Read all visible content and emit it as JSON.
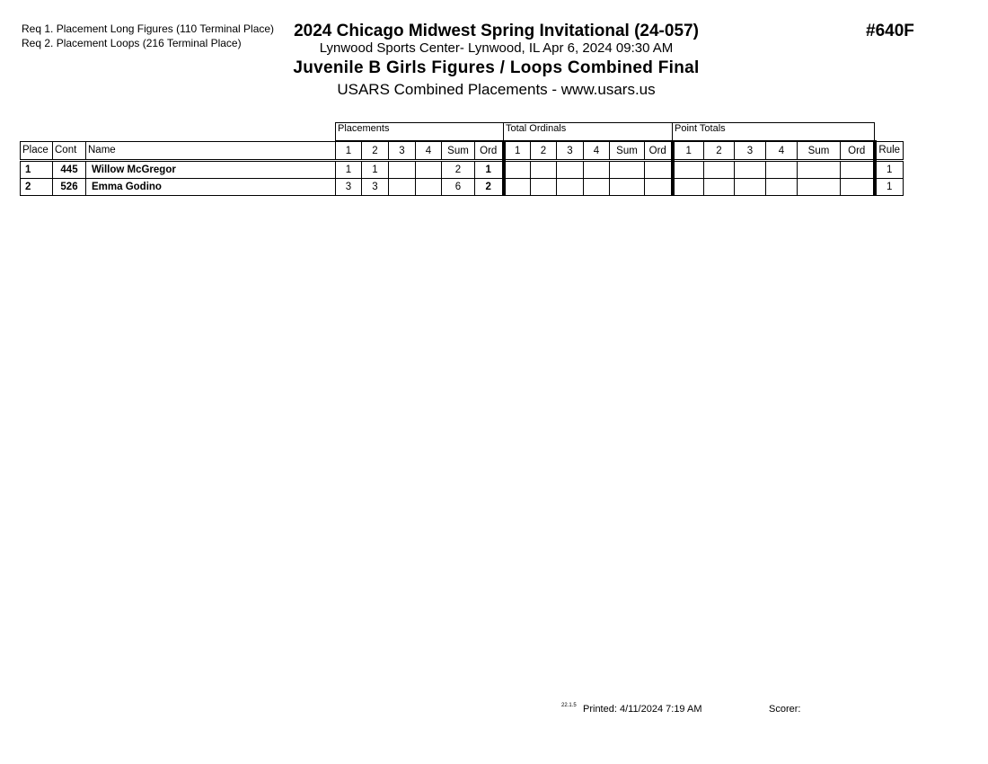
{
  "requirements": [
    "Req  1.  Placement Long Figures (110 Terminal Place)",
    "Req  2.  Placement Loops (216 Terminal Place)"
  ],
  "header": {
    "title": "2024 Chicago Midwest Spring Invitational (24-057)",
    "venue": "Lynwood Sports Center- Lynwood, IL  Apr 6, 2024  09:30 AM",
    "event": "Juvenile B Girls Figures / Loops Combined Final",
    "subtitle": "USARS Combined Placements - www.usars.us",
    "event_number": "#640F"
  },
  "table": {
    "groups": [
      "Placements",
      "Total Ordinals",
      "Point Totals"
    ],
    "columns": [
      "Place",
      "Cont",
      "Name",
      "1",
      "2",
      "3",
      "4",
      "Sum",
      "Ord",
      "1",
      "2",
      "3",
      "4",
      "Sum",
      "Ord",
      "1",
      "2",
      "3",
      "4",
      "Sum",
      "Ord",
      "Rule"
    ],
    "rows": [
      {
        "place": "1",
        "cont": "445",
        "name": "Willow McGregor",
        "placements": [
          "1",
          "1",
          "",
          "",
          "2",
          "1"
        ],
        "total_ordinals": [
          "",
          "",
          "",
          "",
          "",
          ""
        ],
        "point_totals": [
          "",
          "",
          "",
          "",
          "",
          ""
        ],
        "rule": "1"
      },
      {
        "place": "2",
        "cont": "526",
        "name": "Emma Godino",
        "placements": [
          "3",
          "3",
          "",
          "",
          "6",
          "2"
        ],
        "total_ordinals": [
          "",
          "",
          "",
          "",
          "",
          ""
        ],
        "point_totals": [
          "",
          "",
          "",
          "",
          "",
          ""
        ],
        "rule": "1"
      }
    ]
  },
  "footer": {
    "version": "22.1.5",
    "printed": "Printed:  4/11/2024  7:19 AM",
    "scorer": "Scorer:"
  }
}
